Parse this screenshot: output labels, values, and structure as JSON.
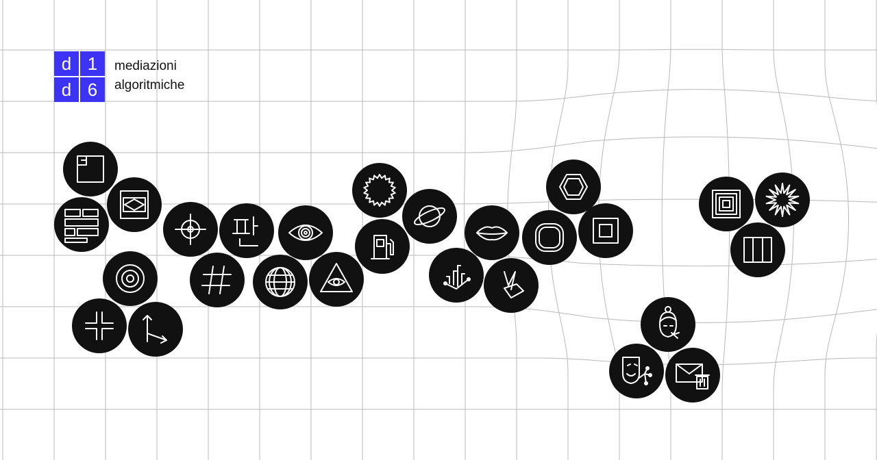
{
  "brand": {
    "color": "#3d33f5",
    "tiles": [
      "d",
      "1",
      "d",
      "6"
    ],
    "title_line1": "mediazioni",
    "title_line2": "algoritmiche"
  },
  "tokens": [
    {
      "name": "corner-square-icon"
    },
    {
      "name": "diamond-frame-icon"
    },
    {
      "name": "brick-wall-icon"
    },
    {
      "name": "crosshair-icon"
    },
    {
      "name": "hangul-glyph-icon"
    },
    {
      "name": "eye-icon"
    },
    {
      "name": "concentric-circles-icon"
    },
    {
      "name": "hash-icon"
    },
    {
      "name": "globe-icon"
    },
    {
      "name": "eye-pyramid-icon"
    },
    {
      "name": "brackets-split-icon"
    },
    {
      "name": "axis-arrows-icon"
    },
    {
      "name": "starburst-icon"
    },
    {
      "name": "fuel-pump-icon"
    },
    {
      "name": "planet-icon"
    },
    {
      "name": "network-chart-icon"
    },
    {
      "name": "lips-icon"
    },
    {
      "name": "hand-gesture-icon"
    },
    {
      "name": "rounded-square-icon"
    },
    {
      "name": "hexagon-icon"
    },
    {
      "name": "square-frame-icon"
    },
    {
      "name": "nested-squares-icon"
    },
    {
      "name": "explosion-icon"
    },
    {
      "name": "three-bars-icon"
    },
    {
      "name": "face-headphones-icon"
    },
    {
      "name": "mask-network-icon"
    },
    {
      "name": "mail-trash-icon"
    }
  ]
}
